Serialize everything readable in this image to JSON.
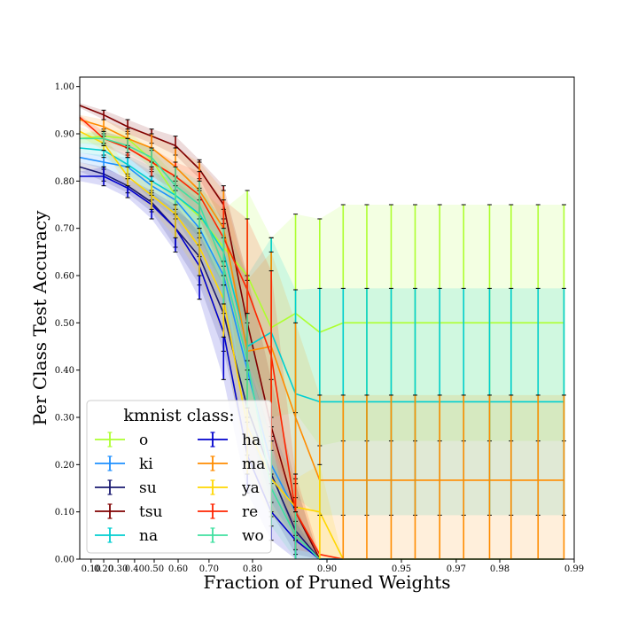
{
  "chart_data": {
    "type": "line",
    "title": "",
    "xlabel": "Fraction of Pruned Weights",
    "ylabel": "Per Class Test Accuracy",
    "ylim": [
      0.0,
      1.02
    ],
    "grid": false,
    "legend_title": "kmnist class:",
    "legend_placement": "bottom-left",
    "x_tick_labels": [
      "0.10",
      "0.20",
      "0.30",
      "0.40",
      "0.50",
      "0.60",
      "0.70",
      "0.80",
      "0.90",
      "0.95",
      "0.97",
      "0.98",
      "0.99"
    ],
    "y_tick_labels": [
      "0.00",
      "0.10",
      "0.20",
      "0.30",
      "0.40",
      "0.50",
      "0.60",
      "0.70",
      "0.80",
      "0.90",
      "1.00"
    ],
    "x": [
      0.0,
      0.2,
      0.36,
      0.488,
      0.59,
      0.672,
      0.738,
      0.79,
      0.832,
      0.866,
      0.893,
      0.914,
      0.931,
      0.945,
      0.956,
      0.965,
      0.972,
      0.978,
      0.982,
      0.986,
      0.989
    ],
    "series": [
      {
        "name": "o",
        "color": "#adff2f",
        "values": [
          0.89,
          0.895,
          0.89,
          0.845,
          0.77,
          0.725,
          0.66,
          0.6,
          0.49,
          0.52,
          0.48,
          0.5,
          0.5,
          0.5,
          0.5,
          0.5,
          0.5,
          0.5,
          0.5,
          0.5,
          0.5
        ],
        "errors": [
          0.01,
          0.015,
          0.015,
          0.02,
          0.04,
          0.06,
          0.08,
          0.18,
          0.19,
          0.21,
          0.24,
          0.25,
          0.25,
          0.25,
          0.25,
          0.25,
          0.25,
          0.25,
          0.25,
          0.25,
          0.25
        ]
      },
      {
        "name": "ki",
        "color": "#1e90ff",
        "values": [
          0.85,
          0.84,
          0.83,
          0.79,
          0.76,
          0.7,
          0.6,
          0.4,
          0.2,
          0.1,
          0.0,
          0.0,
          0.0,
          0.0,
          0.0,
          0.0,
          0.0,
          0.0,
          0.0,
          0.0,
          0.0
        ],
        "errors": [
          0.01,
          0.015,
          0.02,
          0.03,
          0.04,
          0.06,
          0.08,
          0.1,
          0.08,
          0.06,
          0.0,
          0.0,
          0.0,
          0.0,
          0.0,
          0.0,
          0.0,
          0.0,
          0.0,
          0.0,
          0.0
        ]
      },
      {
        "name": "su",
        "color": "#191970",
        "values": [
          0.83,
          0.815,
          0.79,
          0.755,
          0.7,
          0.64,
          0.52,
          0.32,
          0.18,
          0.06,
          0.0,
          0.0,
          0.0,
          0.0,
          0.0,
          0.0,
          0.0,
          0.0,
          0.0,
          0.0,
          0.0
        ],
        "errors": [
          0.01,
          0.015,
          0.015,
          0.02,
          0.04,
          0.06,
          0.08,
          0.1,
          0.08,
          0.05,
          0.0,
          0.0,
          0.0,
          0.0,
          0.0,
          0.0,
          0.0,
          0.0,
          0.0,
          0.0,
          0.0
        ]
      },
      {
        "name": "tsu",
        "color": "#800000",
        "values": [
          0.96,
          0.94,
          0.915,
          0.895,
          0.875,
          0.825,
          0.75,
          0.5,
          0.28,
          0.1,
          0.0,
          0.0,
          0.0,
          0.0,
          0.0,
          0.0,
          0.0,
          0.0,
          0.0,
          0.0,
          0.0
        ],
        "errors": [
          0.005,
          0.01,
          0.015,
          0.015,
          0.02,
          0.02,
          0.04,
          0.1,
          0.1,
          0.06,
          0.0,
          0.0,
          0.0,
          0.0,
          0.0,
          0.0,
          0.0,
          0.0,
          0.0,
          0.0,
          0.0
        ]
      },
      {
        "name": "na",
        "color": "#00ced1",
        "values": [
          0.87,
          0.865,
          0.835,
          0.8,
          0.77,
          0.73,
          0.65,
          0.45,
          0.48,
          0.35,
          0.333,
          0.333,
          0.333,
          0.333,
          0.333,
          0.333,
          0.333,
          0.333,
          0.333,
          0.333,
          0.333
        ],
        "errors": [
          0.01,
          0.015,
          0.02,
          0.03,
          0.04,
          0.05,
          0.07,
          0.15,
          0.2,
          0.22,
          0.24,
          0.24,
          0.24,
          0.24,
          0.24,
          0.24,
          0.24,
          0.24,
          0.24,
          0.24,
          0.24
        ]
      },
      {
        "name": "ha",
        "color": "#0000cd",
        "values": [
          0.81,
          0.81,
          0.785,
          0.75,
          0.7,
          0.62,
          0.48,
          0.22,
          0.1,
          0.04,
          0.0,
          0.0,
          0.0,
          0.0,
          0.0,
          0.0,
          0.0,
          0.0,
          0.0,
          0.0,
          0.0
        ],
        "errors": [
          0.01,
          0.02,
          0.02,
          0.03,
          0.05,
          0.07,
          0.1,
          0.08,
          0.06,
          0.04,
          0.0,
          0.0,
          0.0,
          0.0,
          0.0,
          0.0,
          0.0,
          0.0,
          0.0,
          0.0,
          0.0
        ]
      },
      {
        "name": "ma",
        "color": "#ff8c00",
        "values": [
          0.93,
          0.915,
          0.89,
          0.87,
          0.83,
          0.78,
          0.7,
          0.44,
          0.45,
          0.3,
          0.167,
          0.167,
          0.167,
          0.167,
          0.167,
          0.167,
          0.167,
          0.167,
          0.167,
          0.167,
          0.167
        ],
        "errors": [
          0.01,
          0.015,
          0.02,
          0.03,
          0.04,
          0.06,
          0.08,
          0.15,
          0.2,
          0.2,
          0.18,
          0.18,
          0.18,
          0.18,
          0.18,
          0.18,
          0.18,
          0.18,
          0.18,
          0.18,
          0.18
        ]
      },
      {
        "name": "ya",
        "color": "#ffd700",
        "values": [
          0.905,
          0.88,
          0.81,
          0.77,
          0.73,
          0.66,
          0.55,
          0.28,
          0.17,
          0.11,
          0.1,
          0.0,
          0.0,
          0.0,
          0.0,
          0.0,
          0.0,
          0.0,
          0.0,
          0.0,
          0.0
        ],
        "errors": [
          0.01,
          0.015,
          0.02,
          0.03,
          0.05,
          0.06,
          0.08,
          0.1,
          0.08,
          0.06,
          0.1,
          0.0,
          0.0,
          0.0,
          0.0,
          0.0,
          0.0,
          0.0,
          0.0,
          0.0,
          0.0
        ]
      },
      {
        "name": "re",
        "color": "#ff2400",
        "values": [
          0.935,
          0.89,
          0.87,
          0.84,
          0.81,
          0.77,
          0.68,
          0.57,
          0.43,
          0.1,
          0.01,
          0.0,
          0.0,
          0.0,
          0.0,
          0.0,
          0.0,
          0.0,
          0.0,
          0.0,
          0.0
        ],
        "errors": [
          0.005,
          0.015,
          0.02,
          0.03,
          0.03,
          0.05,
          0.08,
          0.15,
          0.18,
          0.08,
          0.0,
          0.0,
          0.0,
          0.0,
          0.0,
          0.0,
          0.0,
          0.0,
          0.0,
          0.0,
          0.0
        ]
      },
      {
        "name": "wo",
        "color": "#40e0a0",
        "values": [
          0.89,
          0.89,
          0.875,
          0.85,
          0.79,
          0.75,
          0.62,
          0.42,
          0.15,
          0.05,
          0.0,
          0.0,
          0.0,
          0.0,
          0.0,
          0.0,
          0.0,
          0.0,
          0.0,
          0.0,
          0.0
        ],
        "errors": [
          0.01,
          0.015,
          0.015,
          0.02,
          0.04,
          0.05,
          0.08,
          0.1,
          0.08,
          0.05,
          0.0,
          0.0,
          0.0,
          0.0,
          0.0,
          0.0,
          0.0,
          0.0,
          0.0,
          0.0,
          0.0
        ]
      }
    ]
  }
}
